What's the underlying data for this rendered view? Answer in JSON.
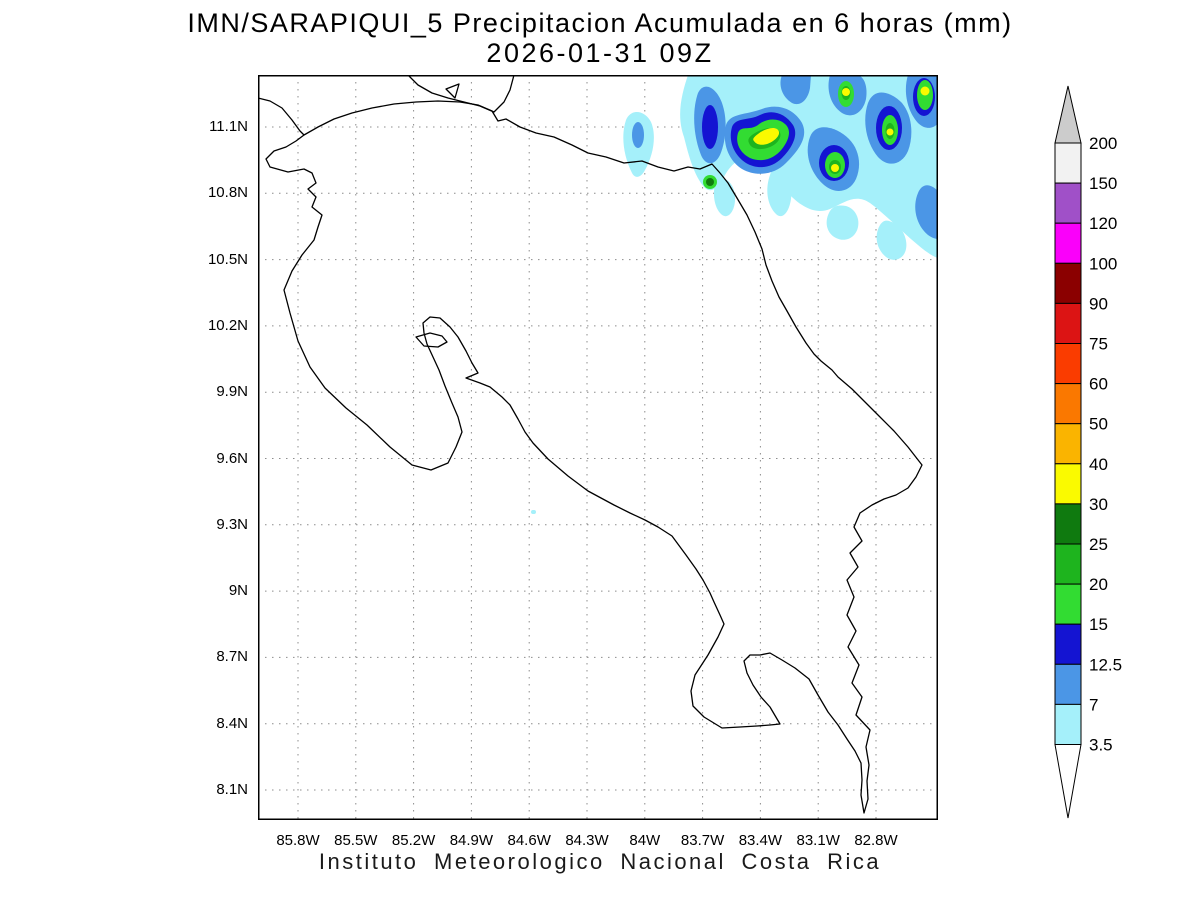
{
  "page": {
    "background": "#ffffff"
  },
  "title": {
    "line1": "IMN/SARAPIQUI_5 Precipitacion Acumulada en 6 horas (mm)",
    "line2": "2026-01-31 09Z"
  },
  "caption": "Instituto Meteorologico Nacional Costa Rica",
  "axes": {
    "lat_ticks": [
      "11.1N",
      "10.8N",
      "10.5N",
      "10.2N",
      "9.9N",
      "9.6N",
      "9.3N",
      "9N",
      "8.7N",
      "8.4N",
      "8.1N"
    ],
    "lon_ticks": [
      "85.8W",
      "85.5W",
      "85.2W",
      "84.9W",
      "84.6W",
      "84.3W",
      "84W",
      "83.7W",
      "83.4W",
      "83.1W",
      "82.8W"
    ]
  },
  "chart_data": {
    "type": "filled-contour-precipitation-map",
    "title": "IMN/SARAPIQUI_5 Precipitacion Acumulada en 6 horas (mm)",
    "valid_time": "2026-01-31 09Z",
    "units": "mm",
    "levels": [
      3.5,
      7,
      12.5,
      15,
      20,
      25,
      30,
      40,
      50,
      60,
      75,
      90,
      100,
      120,
      150,
      200
    ],
    "colors_low_to_high": [
      "#a5f0fa",
      "#4b96e6",
      "#1414d2",
      "#32dc32",
      "#1eb41e",
      "#0f7a0f",
      "#fafa00",
      "#fab400",
      "#fa7800",
      "#fa3c00",
      "#dc1414",
      "#8b0000",
      "#fa00fa",
      "#a050c8",
      "#f2f2f2"
    ],
    "above_max_color": "#cccccc",
    "below_min_color": "#ffffff",
    "lat_axis": {
      "min_label": "8.1N",
      "max_label": "11.1N",
      "tick_interval_deg": 0.3
    },
    "lon_axis": {
      "min_label": "85.8W",
      "max_label": "82.8W",
      "tick_interval_deg": 0.3
    },
    "grid": "dotted",
    "colorbar_position": "right",
    "map_region": "Costa Rica with southern Nicaragua (Lake Nicaragua shore) and Panama border",
    "observed_features": [
      "SW-NE oriented precipitation band across the Caribbean (northeast) corner of the domain",
      "embedded cores of 15-30 mm (greens) with small maxima exceeding 30 mm (yellow)",
      "small intense core near the Nicaragua border at the Caribbean coast (~10.9N 83.7W)",
      "isolated small cyan echo west of the main band (~11.0N 83.9W)",
      "tiny light (<7 mm) echo near 9.35N 84.35W in the map interior"
    ]
  }
}
